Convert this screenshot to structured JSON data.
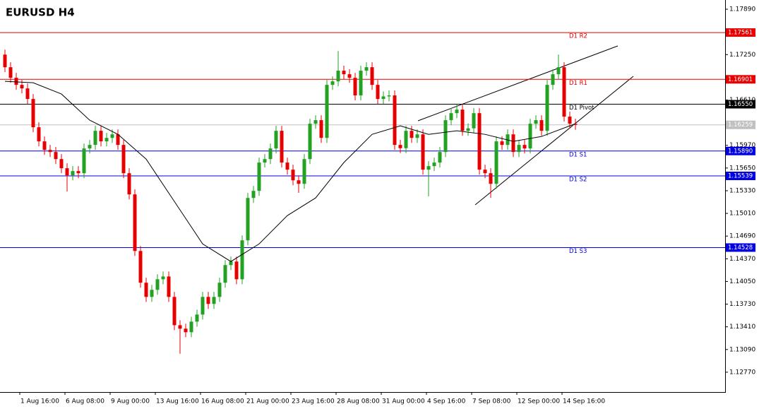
{
  "chart_data": {
    "type": "candlestick",
    "title": "EURUSD H4",
    "ylim": [
      1.1249,
      1.1802
    ],
    "yticks": [
      {
        "value": 1.1789,
        "label": "1.17890"
      },
      {
        "value": 1.1725,
        "label": "1.17250"
      },
      {
        "value": 1.1661,
        "label": "1.16610"
      },
      {
        "value": 1.1597,
        "label": "1.15970"
      },
      {
        "value": 1.1565,
        "label": "1.15650"
      },
      {
        "value": 1.1533,
        "label": "1.15330"
      },
      {
        "value": 1.1501,
        "label": "1.15010"
      },
      {
        "value": 1.1469,
        "label": "1.14690"
      },
      {
        "value": 1.1437,
        "label": "1.14370"
      },
      {
        "value": 1.1405,
        "label": "1.14050"
      },
      {
        "value": 1.1373,
        "label": "1.13730"
      },
      {
        "value": 1.1341,
        "label": "1.13410"
      },
      {
        "value": 1.1309,
        "label": "1.13090"
      },
      {
        "value": 1.1277,
        "label": "1.12770"
      }
    ],
    "categories": [
      null,
      null,
      null,
      "1 Aug 16:00",
      null,
      null,
      null,
      null,
      null,
      null,
      null,
      "6 Aug 08:00",
      null,
      null,
      null,
      null,
      null,
      null,
      null,
      "9 Aug 00:00",
      null,
      null,
      null,
      null,
      null,
      null,
      null,
      "13 Aug 16:00",
      null,
      null,
      null,
      null,
      null,
      null,
      null,
      "16 Aug 08:00",
      null,
      null,
      null,
      null,
      null,
      null,
      null,
      "21 Aug 00:00",
      null,
      null,
      null,
      null,
      null,
      null,
      null,
      "23 Aug 16:00",
      null,
      null,
      null,
      null,
      null,
      null,
      null,
      "28 Aug 08:00",
      null,
      null,
      null,
      null,
      null,
      null,
      null,
      "31 Aug 00:00",
      null,
      null,
      null,
      null,
      null,
      null,
      null,
      "4 Sep 16:00",
      null,
      null,
      null,
      null,
      null,
      null,
      null,
      "7 Sep 08:00",
      null,
      null,
      null,
      null,
      null,
      null,
      null,
      "12 Sep 00:00",
      null,
      null,
      null,
      null,
      null,
      null,
      null,
      "14 Sep 16:00",
      null,
      null
    ],
    "up_color": "#22a122",
    "down_color": "#e60000",
    "candles": {
      "open": [
        1.1725,
        1.17072,
        1.16923,
        1.16823,
        1.16773,
        1.16624,
        1.16225,
        1.16026,
        1.15906,
        1.15876,
        1.15776,
        1.15647,
        1.15547,
        1.15607,
        1.15577,
        1.15926,
        1.15976,
        1.16175,
        1.16026,
        1.16075,
        1.16125,
        1.15976,
        1.15577,
        1.15278,
        1.1448,
        1.14032,
        1.13832,
        1.13932,
        1.14081,
        1.1412,
        1.13832,
        1.13433,
        1.13384,
        1.13334,
        1.13483,
        1.13583,
        1.13832,
        1.13733,
        1.13832,
        1.14032,
        1.14281,
        1.14331,
        1.14081,
        1.1463,
        1.15228,
        1.15328,
        1.15727,
        1.15776,
        1.15926,
        1.16175,
        1.15727,
        1.15627,
        1.15477,
        1.15427,
        1.15776,
        1.16275,
        1.16325,
        1.16075,
        1.16823,
        1.16873,
        1.17023,
        1.16973,
        1.16923,
        1.16674,
        1.17023,
        1.17072,
        1.16823,
        1.16624,
        1.1666,
        1.16674,
        1.15976,
        1.1593,
        1.16175,
        1.16075,
        1.16125,
        1.15627,
        1.15677,
        1.15727,
        1.15876,
        1.16325,
        1.16424,
        1.16474,
        1.16175,
        1.1621,
        1.16424,
        1.15627,
        1.15577,
        1.15427,
        1.16026,
        1.15976,
        1.16125,
        1.15876,
        1.15976,
        1.15926,
        1.16275,
        1.16325,
        1.16175,
        1.16823,
        1.16973,
        1.17072,
        1.16375,
        1.16275
      ],
      "high": [
        1.1732,
        1.17142,
        1.16993,
        1.16893,
        1.16843,
        1.16694,
        1.16295,
        1.16096,
        1.15976,
        1.15946,
        1.15846,
        1.15717,
        1.15677,
        1.15677,
        1.15996,
        1.16046,
        1.16245,
        1.16245,
        1.16145,
        1.16195,
        1.16195,
        1.16046,
        1.15647,
        1.15348,
        1.1455,
        1.14102,
        1.14002,
        1.14151,
        1.1419,
        1.1419,
        1.13902,
        1.13503,
        1.13454,
        1.13553,
        1.13653,
        1.13902,
        1.13902,
        1.13902,
        1.14102,
        1.14351,
        1.14401,
        1.14401,
        1.147,
        1.15298,
        1.15398,
        1.15797,
        1.15846,
        1.15996,
        1.16245,
        1.16245,
        1.15797,
        1.15697,
        1.15547,
        1.15846,
        1.16345,
        1.16395,
        1.16395,
        1.16893,
        1.16943,
        1.173,
        1.17093,
        1.17043,
        1.16993,
        1.17093,
        1.17142,
        1.17142,
        1.16893,
        1.1673,
        1.16744,
        1.16744,
        1.16046,
        1.16245,
        1.16245,
        1.16195,
        1.16195,
        1.15747,
        1.15797,
        1.15946,
        1.16395,
        1.16494,
        1.16544,
        1.16544,
        1.1628,
        1.16494,
        1.16494,
        1.15697,
        1.15647,
        1.16096,
        1.16096,
        1.16195,
        1.16195,
        1.16046,
        1.16046,
        1.16345,
        1.16395,
        1.16395,
        1.16893,
        1.17043,
        1.1725,
        1.17142,
        1.16445,
        1.16345
      ],
      "low": [
        1.17002,
        1.16853,
        1.16753,
        1.16703,
        1.16554,
        1.16155,
        1.15956,
        1.15836,
        1.15806,
        1.15706,
        1.15577,
        1.1532,
        1.15477,
        1.15507,
        1.15507,
        1.15856,
        1.15906,
        1.15956,
        1.15956,
        1.16005,
        1.15906,
        1.15507,
        1.15208,
        1.1441,
        1.13962,
        1.13762,
        1.13762,
        1.13862,
        1.14011,
        1.13762,
        1.13363,
        1.1303,
        1.13264,
        1.13264,
        1.13413,
        1.13513,
        1.13663,
        1.13663,
        1.13762,
        1.13962,
        1.14211,
        1.14011,
        1.14011,
        1.1456,
        1.15158,
        1.15258,
        1.15657,
        1.15706,
        1.15856,
        1.15657,
        1.15557,
        1.15407,
        1.153,
        1.15357,
        1.15706,
        1.16205,
        1.16005,
        1.16005,
        1.16753,
        1.16803,
        1.16903,
        1.16853,
        1.16604,
        1.16604,
        1.16953,
        1.16753,
        1.16554,
        1.16554,
        1.1659,
        1.15906,
        1.1586,
        1.1586,
        1.16005,
        1.16005,
        1.15557,
        1.1525,
        1.15607,
        1.15657,
        1.15806,
        1.16255,
        1.16354,
        1.16105,
        1.16105,
        1.1614,
        1.15557,
        1.15507,
        1.1523,
        1.15357,
        1.15906,
        1.15906,
        1.15806,
        1.15806,
        1.15856,
        1.15856,
        1.16205,
        1.16105,
        1.16105,
        1.16753,
        1.16903,
        1.16305,
        1.16205,
        1.16189
      ],
      "close": [
        1.17072,
        1.16923,
        1.16823,
        1.16773,
        1.16624,
        1.16225,
        1.16026,
        1.15906,
        1.15876,
        1.15776,
        1.15647,
        1.15547,
        1.15607,
        1.15577,
        1.15926,
        1.15976,
        1.16175,
        1.16026,
        1.16075,
        1.16125,
        1.15976,
        1.15577,
        1.15278,
        1.1448,
        1.14032,
        1.13832,
        1.13932,
        1.14081,
        1.1412,
        1.13832,
        1.13433,
        1.13384,
        1.13334,
        1.13483,
        1.13583,
        1.13832,
        1.13733,
        1.13832,
        1.14032,
        1.14281,
        1.14331,
        1.14081,
        1.1463,
        1.15228,
        1.15328,
        1.15727,
        1.15776,
        1.15926,
        1.16175,
        1.15727,
        1.15627,
        1.15477,
        1.15427,
        1.15776,
        1.16275,
        1.16325,
        1.16075,
        1.16823,
        1.16873,
        1.17023,
        1.16973,
        1.16923,
        1.16674,
        1.17023,
        1.17072,
        1.16823,
        1.16624,
        1.1666,
        1.16674,
        1.15976,
        1.1593,
        1.16175,
        1.16075,
        1.16125,
        1.15627,
        1.15677,
        1.15727,
        1.15876,
        1.16325,
        1.16424,
        1.16474,
        1.16175,
        1.1621,
        1.16424,
        1.15627,
        1.15577,
        1.15427,
        1.16026,
        1.15976,
        1.16125,
        1.15876,
        1.15976,
        1.15926,
        1.16275,
        1.16325,
        1.16175,
        1.16823,
        1.16973,
        1.17072,
        1.16375,
        1.16275,
        1.16259
      ]
    },
    "moving_average": {
      "color": "#000000",
      "x": [
        0,
        5,
        10,
        15,
        20,
        25,
        30,
        35,
        40,
        45,
        50,
        55,
        60,
        65,
        70,
        75,
        80,
        85,
        90,
        95,
        101
      ],
      "values": [
        1.16873,
        1.16853,
        1.16694,
        1.16325,
        1.16125,
        1.15776,
        1.15178,
        1.1458,
        1.14331,
        1.1458,
        1.14979,
        1.15228,
        1.15727,
        1.16125,
        1.16245,
        1.16125,
        1.16175,
        1.16125,
        1.16026,
        1.16095,
        1.16275
      ]
    },
    "levels": [
      {
        "name": "D1 R2",
        "value": 1.17561,
        "color": "#e60000"
      },
      {
        "name": "D1 R1",
        "value": 1.16901,
        "color": "#e60000"
      },
      {
        "name": "D1 Pivot",
        "value": 1.1655,
        "label": "1.16550",
        "color": "#000000"
      },
      {
        "name": "D1 S1",
        "value": 1.1589,
        "label": "1.15890",
        "color": "#0000e0"
      },
      {
        "name": "D1 S2",
        "value": 1.15539,
        "color": "#0000e0"
      },
      {
        "name": "D1 S3",
        "value": 1.14528,
        "color": "#0000e0"
      }
    ],
    "current_price": {
      "value": 1.16259,
      "color": "#c0c0c0"
    }
  }
}
